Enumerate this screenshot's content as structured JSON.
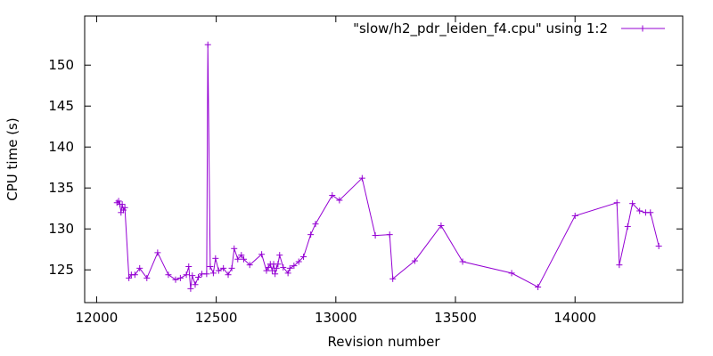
{
  "chart_data": {
    "type": "line",
    "xlabel": "Revision number",
    "ylabel": "CPU time (s)",
    "xlim": [
      11950,
      14450
    ],
    "ylim": [
      121,
      156
    ],
    "xticks": [
      12000,
      12500,
      13000,
      13500,
      14000
    ],
    "yticks": [
      125,
      130,
      135,
      140,
      145,
      150
    ],
    "grid": false,
    "legend_position": "top-right",
    "series": [
      {
        "name": "\"slow/h2_pdr_leiden_f4.cpu\" using 1:2",
        "color": "#9400d3",
        "marker": "plus",
        "x": [
          12085,
          12092,
          12097,
          12102,
          12107,
          12112,
          12118,
          12135,
          12145,
          12160,
          12180,
          12210,
          12255,
          12300,
          12330,
          12350,
          12375,
          12385,
          12393,
          12400,
          12412,
          12425,
          12440,
          12460,
          12465,
          12475,
          12488,
          12497,
          12510,
          12530,
          12550,
          12565,
          12575,
          12590,
          12605,
          12615,
          12640,
          12690,
          12710,
          12718,
          12726,
          12734,
          12740,
          12746,
          12752,
          12758,
          12765,
          12780,
          12800,
          12808,
          12825,
          12845,
          12865,
          12895,
          12915,
          12985,
          13015,
          13110,
          13165,
          13225,
          13238,
          13330,
          13440,
          13530,
          13735,
          13845,
          14000,
          14175,
          14185,
          14220,
          14240,
          14270,
          14295,
          14315,
          14350
        ],
        "y": [
          133.2,
          133.4,
          133.0,
          132.0,
          133.0,
          132.3,
          132.6,
          124.0,
          124.4,
          124.4,
          125.2,
          124.0,
          127.1,
          124.4,
          123.8,
          124.0,
          124.4,
          125.4,
          122.7,
          124.3,
          123.2,
          124.1,
          124.5,
          124.5,
          152.5,
          125.4,
          124.6,
          126.4,
          124.9,
          125.2,
          124.4,
          125.2,
          127.6,
          126.3,
          126.8,
          126.3,
          125.6,
          126.9,
          124.9,
          125.3,
          125.7,
          124.9,
          125.7,
          124.5,
          125.2,
          125.7,
          126.8,
          125.3,
          124.6,
          125.2,
          125.5,
          126.0,
          126.6,
          129.3,
          130.6,
          134.1,
          133.5,
          136.2,
          129.2,
          129.3,
          123.9,
          126.1,
          130.4,
          126.0,
          124.6,
          122.9,
          131.6,
          133.2,
          125.6,
          130.3,
          133.1,
          132.2,
          132.0,
          132.0,
          127.9
        ]
      }
    ]
  }
}
